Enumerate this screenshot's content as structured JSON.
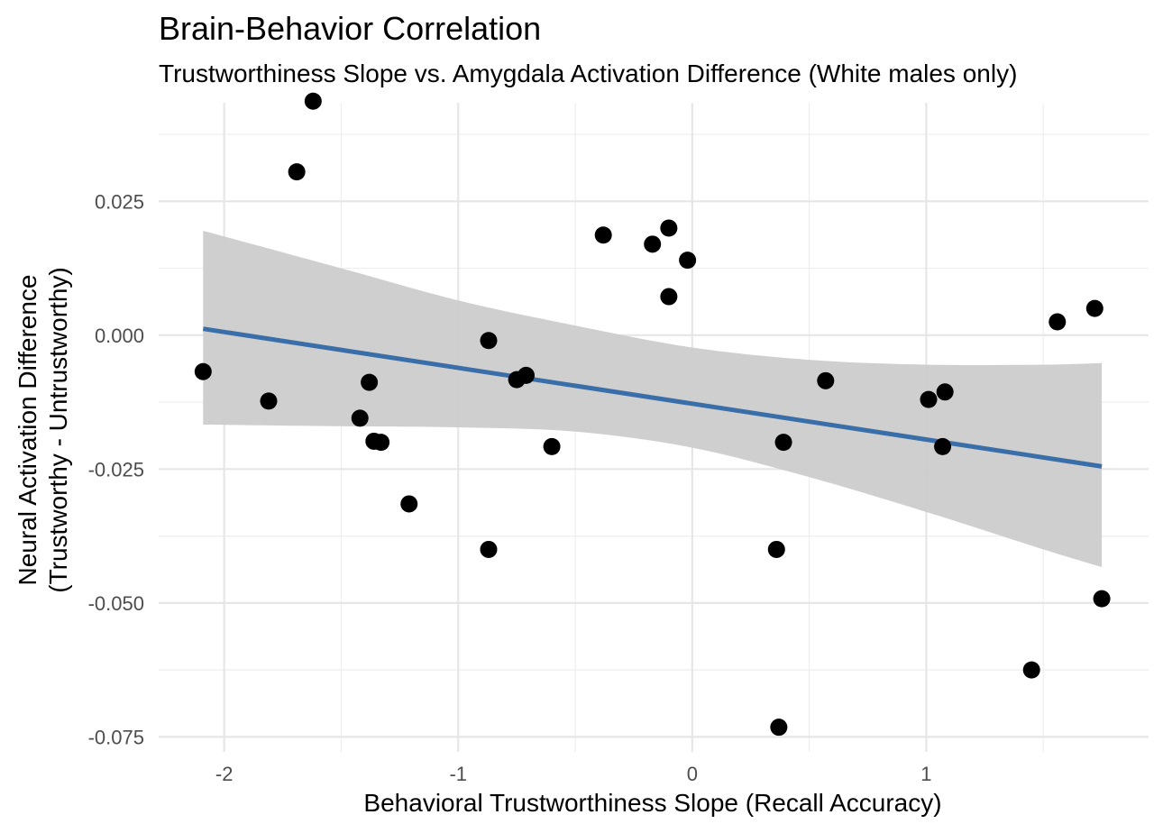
{
  "chart_data": {
    "type": "scatter",
    "title": "Brain-Behavior Correlation",
    "subtitle": "Trustworthiness Slope vs. Amygdala Activation Difference (White males only)",
    "xlabel": "Behavioral Trustworthiness Slope (Recall Accuracy)",
    "ylabel_lines": [
      "Neural Activation Difference",
      "(Trustworthy - Untrustworthy)"
    ],
    "xlim": [
      -2.28,
      1.95
    ],
    "ylim": [
      -0.0778,
      0.0434
    ],
    "x_major_ticks": [
      -2,
      -1,
      0,
      1
    ],
    "x_tick_labels": [
      "-2",
      "-1",
      "0",
      "1"
    ],
    "x_minor_ticks": [
      -1.5,
      -0.5,
      0.5,
      1.5
    ],
    "y_major_ticks": [
      0.025,
      0.0,
      -0.025,
      -0.05,
      -0.075
    ],
    "y_tick_labels": [
      "0.025",
      "0.000",
      "-0.025",
      "-0.050",
      "-0.075"
    ],
    "y_minor_ticks": [
      0.0375,
      0.0125,
      -0.0125,
      -0.0375,
      -0.0625
    ],
    "grid": true,
    "colors": {
      "points": "#000000",
      "fit_line": "#3a6ea8",
      "confidence_band": "#cccccc"
    },
    "points": [
      {
        "x": -2.09,
        "y": -0.0068
      },
      {
        "x": -1.62,
        "y": 0.0437
      },
      {
        "x": -1.69,
        "y": 0.0305
      },
      {
        "x": -1.81,
        "y": -0.0123
      },
      {
        "x": -1.42,
        "y": -0.0155
      },
      {
        "x": -1.38,
        "y": -0.0088
      },
      {
        "x": -1.36,
        "y": -0.0198
      },
      {
        "x": -1.33,
        "y": -0.02
      },
      {
        "x": -1.21,
        "y": -0.0315
      },
      {
        "x": -0.87,
        "y": -0.001
      },
      {
        "x": -0.87,
        "y": -0.04
      },
      {
        "x": -0.75,
        "y": -0.0083
      },
      {
        "x": -0.71,
        "y": -0.0075
      },
      {
        "x": -0.6,
        "y": -0.0208
      },
      {
        "x": -0.38,
        "y": 0.0187
      },
      {
        "x": -0.17,
        "y": 0.017
      },
      {
        "x": -0.1,
        "y": 0.02
      },
      {
        "x": -0.1,
        "y": 0.0072
      },
      {
        "x": -0.02,
        "y": 0.014
      },
      {
        "x": 0.36,
        "y": -0.04
      },
      {
        "x": 0.39,
        "y": -0.02
      },
      {
        "x": 0.37,
        "y": -0.0732
      },
      {
        "x": 0.57,
        "y": -0.0085
      },
      {
        "x": 1.01,
        "y": -0.012
      },
      {
        "x": 1.08,
        "y": -0.0106
      },
      {
        "x": 1.07,
        "y": -0.0208
      },
      {
        "x": 1.45,
        "y": -0.0625
      },
      {
        "x": 1.56,
        "y": 0.0025
      },
      {
        "x": 1.72,
        "y": 0.005
      },
      {
        "x": 1.75,
        "y": -0.0492
      }
    ],
    "fit": {
      "x": [
        -2.09,
        1.75
      ],
      "y": [
        0.0012,
        -0.0245
      ]
    },
    "confidence_band": {
      "x": [
        -2.09,
        -1.5,
        -1.0,
        -0.5,
        0.0,
        0.5,
        1.0,
        1.5,
        1.75
      ],
      "upper": [
        0.0195,
        0.0125,
        0.0065,
        0.0018,
        -0.0023,
        -0.0046,
        -0.0055,
        -0.0055,
        -0.0052
      ],
      "lower": [
        -0.0167,
        -0.017,
        -0.0172,
        -0.018,
        -0.021,
        -0.0265,
        -0.033,
        -0.04,
        -0.0433
      ]
    }
  }
}
